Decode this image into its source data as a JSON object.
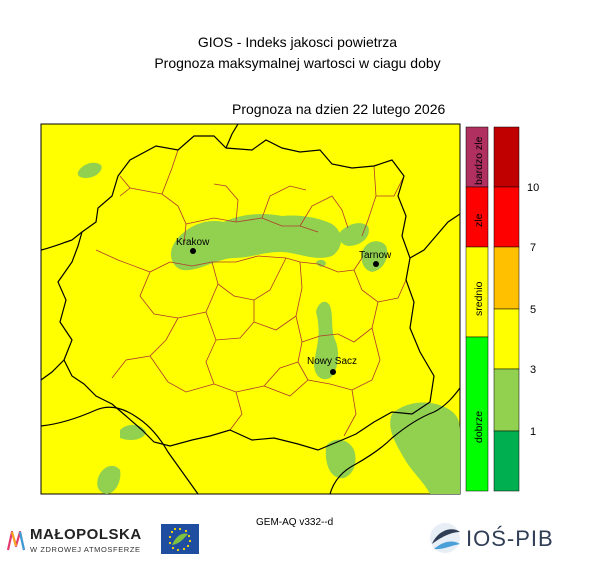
{
  "header": {
    "title_line1": "GIOS - Indeks jakosci powietrza",
    "title_line2": "Prognoza maksymalnej wartosci w ciagu doby",
    "forecast_date": "Prognoza na dzien  22 lutego 2026"
  },
  "map": {
    "background_color": "#ffff00",
    "green_area_color": "#92d050",
    "cities": [
      {
        "id": "krakow",
        "label": "Krakow"
      },
      {
        "id": "tarnow",
        "label": "Tarnow"
      },
      {
        "id": "nowy-sacz",
        "label": "Nowy Sacz"
      }
    ]
  },
  "category_bar": [
    {
      "label": "bardzo zle",
      "color": "#b03060"
    },
    {
      "label": "zle",
      "color": "#ff0000"
    },
    {
      "label": "srednio",
      "color": "#ffff00"
    },
    {
      "label": "dobrze",
      "color": "#00ff00"
    }
  ],
  "scale_bar": {
    "segments": [
      {
        "color": "#c00000"
      },
      {
        "color": "#ff0000"
      },
      {
        "color": "#ffc000"
      },
      {
        "color": "#ffff00"
      },
      {
        "color": "#92d050"
      },
      {
        "color": "#00b050"
      }
    ],
    "ticks": [
      "10",
      "7",
      "5",
      "3",
      "1"
    ]
  },
  "footer": {
    "model": "GEM-AQ v332--d",
    "malopolska_name": "MAŁOPOLSKA",
    "malopolska_tagline": "W ZDROWEJ ATMOSFERZE",
    "eu_logo_icon": "eu-life-flag-icon",
    "ios_name": "IOŚ-PIB"
  }
}
